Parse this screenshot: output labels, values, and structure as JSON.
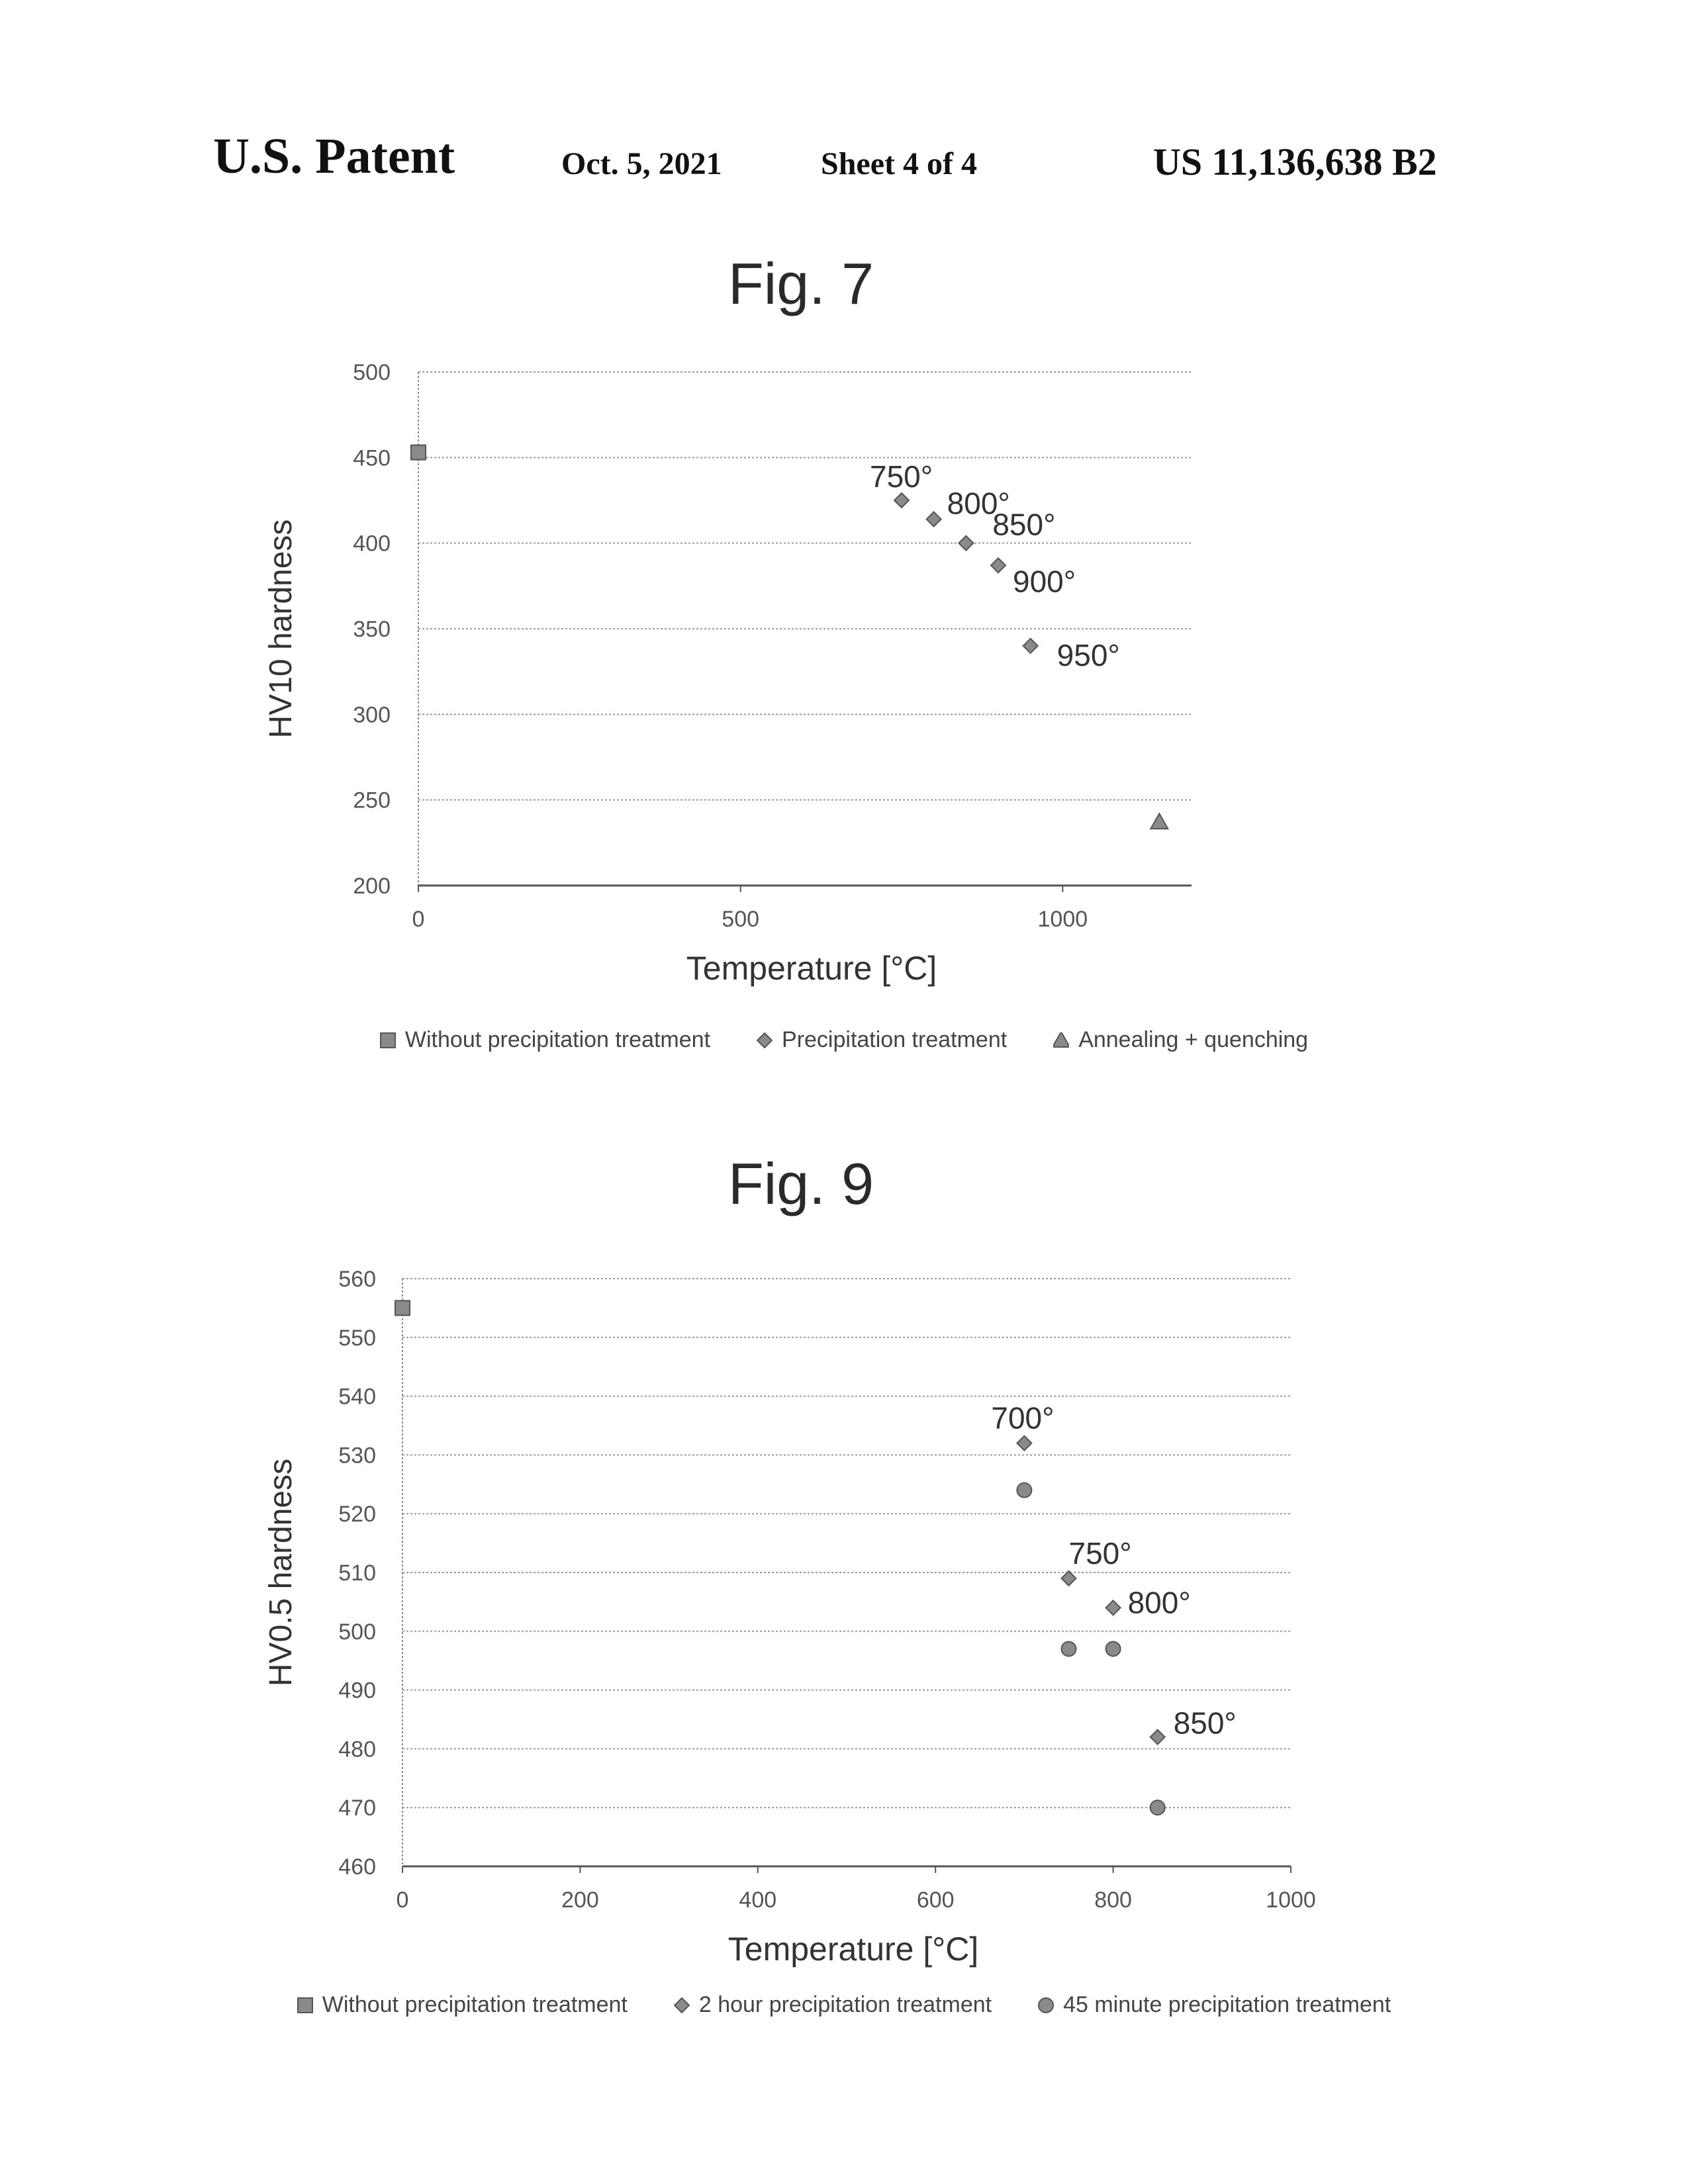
{
  "header": {
    "left": "U.S. Patent",
    "date": "Oct. 5, 2021",
    "sheet": "Sheet 4 of 4",
    "patent_no": "US 11,136,638 B2"
  },
  "chart_data": [
    {
      "type": "scatter",
      "title": "Fig. 7",
      "xlabel": "Temperature  [°C]",
      "ylabel": "HV10 hardness",
      "xlim": [
        0,
        1200
      ],
      "ylim": [
        200,
        500
      ],
      "xticks": [
        0,
        500,
        1000
      ],
      "yticks": [
        200,
        250,
        300,
        350,
        400,
        450,
        500
      ],
      "grid": "horizontal",
      "legend_position": "bottom",
      "series": [
        {
          "name": "Without precipitation treatment",
          "marker": "square",
          "points": [
            {
              "x": 0,
              "y": 453
            }
          ]
        },
        {
          "name": "Precipitation treatment",
          "marker": "diamond",
          "points": [
            {
              "x": 750,
              "y": 425,
              "label": "750°"
            },
            {
              "x": 800,
              "y": 414,
              "label": "800°"
            },
            {
              "x": 850,
              "y": 400,
              "label": "850°"
            },
            {
              "x": 900,
              "y": 387,
              "label": "900°"
            },
            {
              "x": 950,
              "y": 340,
              "label": "950°"
            }
          ]
        },
        {
          "name": "Annealing + quenching",
          "marker": "triangle",
          "points": [
            {
              "x": 1150,
              "y": 237
            }
          ]
        }
      ]
    },
    {
      "type": "scatter",
      "title": "Fig. 9",
      "xlabel": "Temperature  [°C]",
      "ylabel": "HV0.5 hardness",
      "xlim": [
        0,
        1000
      ],
      "ylim": [
        460,
        560
      ],
      "xticks": [
        0,
        200,
        400,
        600,
        800,
        1000
      ],
      "yticks": [
        460,
        470,
        480,
        490,
        500,
        510,
        520,
        530,
        540,
        550,
        560
      ],
      "grid": "horizontal",
      "legend_position": "bottom",
      "series": [
        {
          "name": "Without precipitation treatment",
          "marker": "square",
          "points": [
            {
              "x": 0,
              "y": 555
            }
          ]
        },
        {
          "name": "2 hour precipitation treatment",
          "marker": "diamond",
          "points": [
            {
              "x": 700,
              "y": 532,
              "label": "700°"
            },
            {
              "x": 750,
              "y": 509,
              "label": "750°"
            },
            {
              "x": 800,
              "y": 504,
              "label": "800°"
            },
            {
              "x": 850,
              "y": 482,
              "label": "850°"
            }
          ]
        },
        {
          "name": "45 minute precipitation treatment",
          "marker": "circle",
          "points": [
            {
              "x": 700,
              "y": 524
            },
            {
              "x": 750,
              "y": 497
            },
            {
              "x": 800,
              "y": 497
            },
            {
              "x": 850,
              "y": 470
            }
          ]
        }
      ]
    }
  ]
}
